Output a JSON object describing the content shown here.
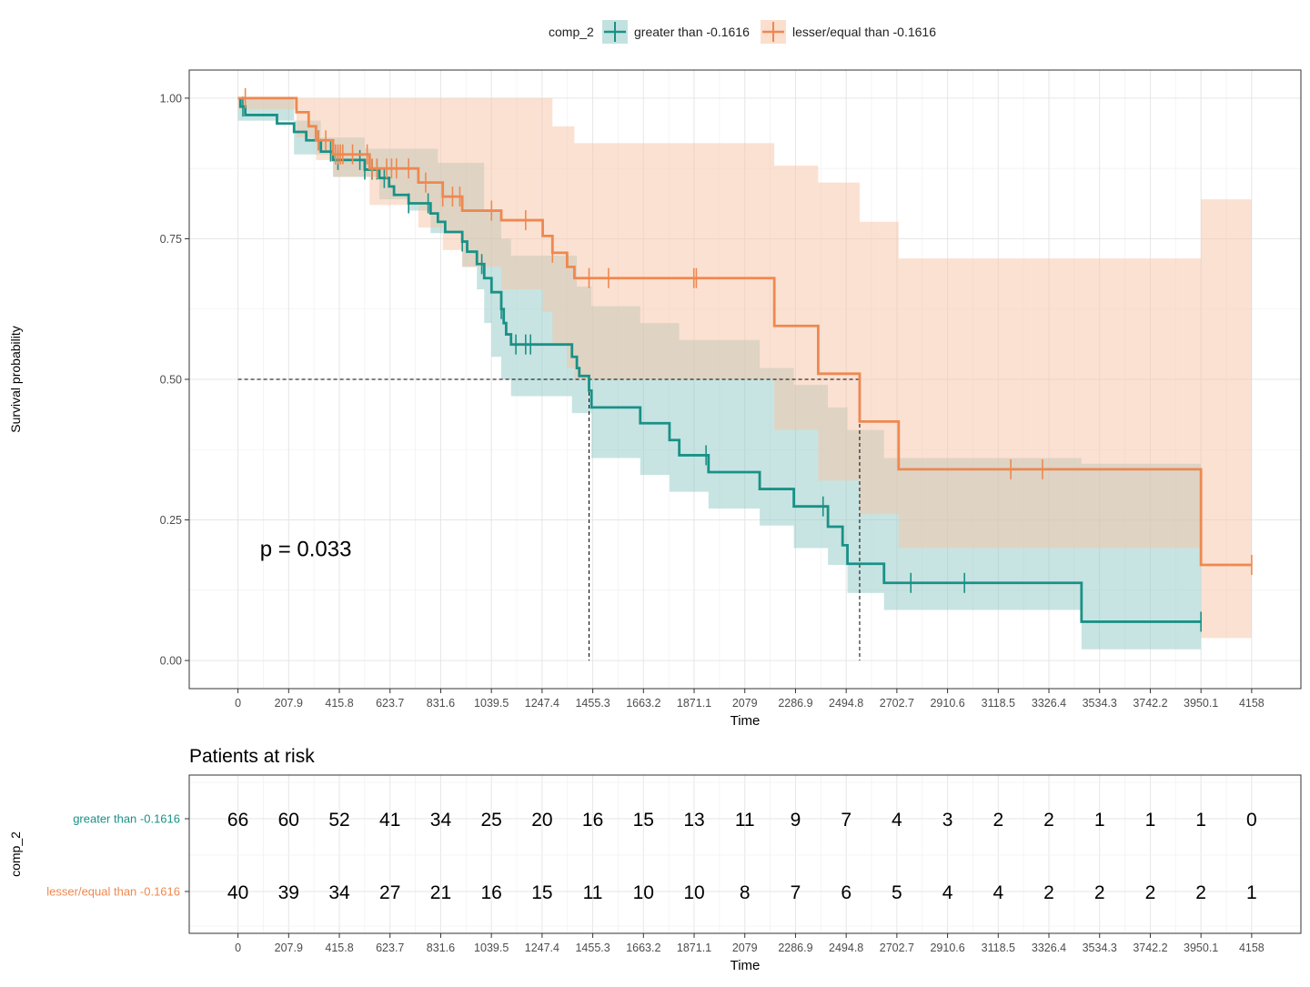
{
  "legend": {
    "title": "comp_2",
    "items": [
      {
        "label": "greater than -0.1616",
        "color": "#1a9187"
      },
      {
        "label": "lesser/equal than -0.1616",
        "color": "#ee8850"
      }
    ]
  },
  "colors": {
    "greater": "#1a9187",
    "greater_fill": "#8fcac6",
    "lesser": "#ee8850",
    "lesser_fill": "#f7c3a6"
  },
  "chart_data": [
    {
      "type": "line",
      "subtype": "kaplan-meier step curve with confidence bands",
      "xlabel": "Time",
      "ylabel": "Survival probability",
      "xlim": [
        -200,
        4360
      ],
      "ylim": [
        -0.05,
        1.05
      ],
      "x_ticks": [
        "0",
        "207.9",
        "415.8",
        "623.7",
        "831.6",
        "1039.5",
        "1247.4",
        "1455.3",
        "1663.2",
        "1871.1",
        "2079",
        "2286.9",
        "2494.8",
        "2702.7",
        "2910.6",
        "3118.5",
        "3326.4",
        "3534.3",
        "3742.2",
        "3950.1",
        "4158"
      ],
      "y_ticks": [
        "0.00",
        "0.25",
        "0.50",
        "0.75",
        "1.00"
      ],
      "grid": true,
      "legend_position": "top",
      "annotation": "p = 0.033",
      "median_survival": [
        {
          "series": "greater than -0.1616",
          "time": 1440
        },
        {
          "series": "lesser/equal than -0.1616",
          "time": 2550
        }
      ],
      "series": [
        {
          "name": "greater than -0.1616",
          "color": "#1a9187",
          "steps": [
            [
              0,
              1.0
            ],
            [
              10,
              0.985
            ],
            [
              30,
              0.97
            ],
            [
              160,
              0.955
            ],
            [
              230,
              0.94
            ],
            [
              280,
              0.925
            ],
            [
              340,
              0.905
            ],
            [
              390,
              0.89
            ],
            [
              520,
              0.873
            ],
            [
              580,
              0.858
            ],
            [
              620,
              0.843
            ],
            [
              640,
              0.828
            ],
            [
              700,
              0.813
            ],
            [
              790,
              0.795
            ],
            [
              820,
              0.78
            ],
            [
              850,
              0.762
            ],
            [
              920,
              0.745
            ],
            [
              940,
              0.727
            ],
            [
              980,
              0.705
            ],
            [
              1010,
              0.68
            ],
            [
              1040,
              0.655
            ],
            [
              1080,
              0.625
            ],
            [
              1090,
              0.6
            ],
            [
              1100,
              0.58
            ],
            [
              1120,
              0.562
            ],
            [
              1370,
              0.54
            ],
            [
              1390,
              0.52
            ],
            [
              1400,
              0.506
            ],
            [
              1440,
              0.48
            ],
            [
              1450,
              0.45
            ],
            [
              1650,
              0.422
            ],
            [
              1770,
              0.392
            ],
            [
              1810,
              0.365
            ],
            [
              1930,
              0.335
            ],
            [
              2140,
              0.305
            ],
            [
              2280,
              0.274
            ],
            [
              2420,
              0.238
            ],
            [
              2480,
              0.205
            ],
            [
              2500,
              0.172
            ],
            [
              2650,
              0.138
            ],
            [
              3460,
              0.069
            ],
            [
              3950,
              0.069
            ]
          ],
          "censor_times": [
            20,
            330,
            380,
            410,
            500,
            520,
            550,
            570,
            600,
            700,
            780,
            920,
            1000,
            1080,
            1140,
            1180,
            1200,
            1920,
            2400,
            2760,
            2980,
            3950
          ],
          "ci_upper": [
            [
              0,
              1.0
            ],
            [
              30,
              1.0
            ],
            [
              230,
              0.96
            ],
            [
              340,
              0.93
            ],
            [
              520,
              0.91
            ],
            [
              820,
              0.885
            ],
            [
              1010,
              0.8
            ],
            [
              1080,
              0.75
            ],
            [
              1120,
              0.72
            ],
            [
              1390,
              0.665
            ],
            [
              1450,
              0.63
            ],
            [
              1650,
              0.6
            ],
            [
              1810,
              0.57
            ],
            [
              2140,
              0.52
            ],
            [
              2280,
              0.49
            ],
            [
              2420,
              0.45
            ],
            [
              2500,
              0.41
            ],
            [
              2650,
              0.36
            ],
            [
              3460,
              0.35
            ],
            [
              3950,
              0.35
            ]
          ],
          "ci_lower": [
            [
              0,
              0.96
            ],
            [
              230,
              0.9
            ],
            [
              390,
              0.86
            ],
            [
              580,
              0.82
            ],
            [
              700,
              0.8
            ],
            [
              790,
              0.76
            ],
            [
              920,
              0.7
            ],
            [
              980,
              0.66
            ],
            [
              1010,
              0.6
            ],
            [
              1040,
              0.54
            ],
            [
              1080,
              0.5
            ],
            [
              1120,
              0.47
            ],
            [
              1370,
              0.44
            ],
            [
              1450,
              0.36
            ],
            [
              1650,
              0.33
            ],
            [
              1770,
              0.3
            ],
            [
              1930,
              0.27
            ],
            [
              2140,
              0.24
            ],
            [
              2280,
              0.2
            ],
            [
              2420,
              0.17
            ],
            [
              2500,
              0.12
            ],
            [
              2650,
              0.09
            ],
            [
              3460,
              0.02
            ],
            [
              3950,
              0.02
            ]
          ]
        },
        {
          "name": "lesser/equal than -0.1616",
          "color": "#ee8850",
          "steps": [
            [
              0,
              1.0
            ],
            [
              240,
              0.975
            ],
            [
              290,
              0.95
            ],
            [
              320,
              0.925
            ],
            [
              390,
              0.9
            ],
            [
              540,
              0.875
            ],
            [
              740,
              0.85
            ],
            [
              840,
              0.825
            ],
            [
              920,
              0.8
            ],
            [
              1080,
              0.783
            ],
            [
              1250,
              0.755
            ],
            [
              1290,
              0.725
            ],
            [
              1350,
              0.7
            ],
            [
              1380,
              0.68
            ],
            [
              2200,
              0.595
            ],
            [
              2380,
              0.51
            ],
            [
              2550,
              0.425
            ],
            [
              2710,
              0.34
            ],
            [
              3950,
              0.17
            ],
            [
              4158,
              0.17
            ]
          ],
          "censor_times": [
            30,
            330,
            360,
            400,
            410,
            420,
            430,
            470,
            530,
            550,
            570,
            610,
            630,
            650,
            700,
            770,
            840,
            880,
            910,
            1040,
            1180,
            1290,
            1440,
            1520,
            1870,
            1880,
            3170,
            3300,
            4158
          ],
          "ci_upper": [
            [
              0,
              1.0
            ],
            [
              1250,
              1.0
            ],
            [
              1290,
              0.95
            ],
            [
              1380,
              0.92
            ],
            [
              2200,
              0.88
            ],
            [
              2380,
              0.85
            ],
            [
              2550,
              0.78
            ],
            [
              2710,
              0.715
            ],
            [
              3950,
              0.82
            ],
            [
              4158,
              0.82
            ]
          ],
          "ci_lower": [
            [
              0,
              0.98
            ],
            [
              240,
              0.93
            ],
            [
              320,
              0.89
            ],
            [
              390,
              0.86
            ],
            [
              540,
              0.81
            ],
            [
              740,
              0.77
            ],
            [
              840,
              0.73
            ],
            [
              920,
              0.7
            ],
            [
              1080,
              0.66
            ],
            [
              1250,
              0.62
            ],
            [
              1290,
              0.56
            ],
            [
              1350,
              0.52
            ],
            [
              1380,
              0.5
            ],
            [
              2200,
              0.41
            ],
            [
              2380,
              0.32
            ],
            [
              2550,
              0.26
            ],
            [
              2710,
              0.2
            ],
            [
              3950,
              0.04
            ],
            [
              4158,
              0.04
            ]
          ]
        }
      ]
    },
    {
      "type": "table",
      "title": "Patients at risk",
      "xlabel": "Time",
      "ylabel": "comp_2",
      "x_ticks": [
        "0",
        "207.9",
        "415.8",
        "623.7",
        "831.6",
        "1039.5",
        "1247.4",
        "1455.3",
        "1663.2",
        "1871.1",
        "2079",
        "2286.9",
        "2494.8",
        "2702.7",
        "2910.6",
        "3118.5",
        "3326.4",
        "3534.3",
        "3742.2",
        "3950.1",
        "4158"
      ],
      "rows": [
        {
          "label": "greater than -0.1616",
          "color": "#1a9187",
          "values": [
            66,
            60,
            52,
            41,
            34,
            25,
            20,
            16,
            15,
            13,
            11,
            9,
            7,
            4,
            3,
            2,
            2,
            1,
            1,
            1,
            0
          ]
        },
        {
          "label": "lesser/equal  than -0.1616",
          "color": "#ee8850",
          "values": [
            40,
            39,
            34,
            27,
            21,
            16,
            15,
            11,
            10,
            10,
            8,
            7,
            6,
            5,
            4,
            4,
            2,
            2,
            2,
            2,
            1
          ]
        }
      ]
    }
  ]
}
